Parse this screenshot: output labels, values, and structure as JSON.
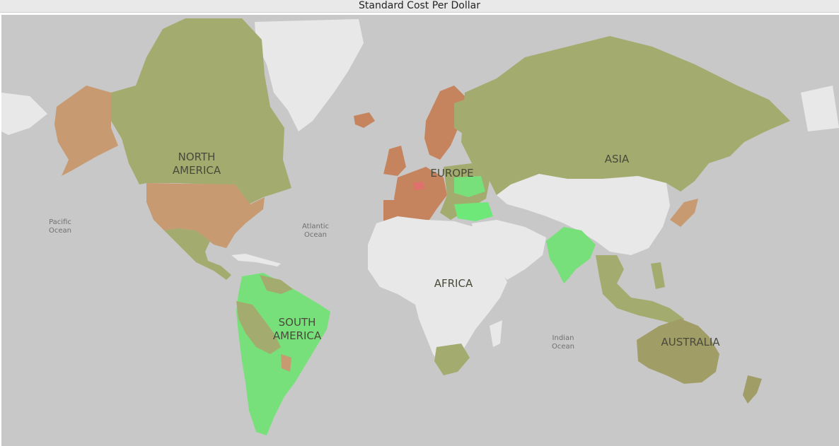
{
  "header": {
    "title": "Standard Cost Per Dollar"
  },
  "map": {
    "continent_labels": {
      "north_america_line1": "NORTH",
      "north_america_line2": "AMERICA",
      "south_america_line1": "SOUTH",
      "south_america_line2": "AMERICA",
      "europe": "EUROPE",
      "asia": "ASIA",
      "africa": "AFRICA",
      "australia": "AUSTRALIA"
    },
    "ocean_labels": {
      "pacific_line1": "Pacific",
      "pacific_line2": "Ocean",
      "atlantic_line1": "Atlantic",
      "atlantic_line2": "Ocean",
      "indian_line1": "Indian",
      "indian_line2": "Ocean"
    },
    "colors": {
      "water": "#c8c8c8",
      "no_data_land": "#e8e8e8",
      "olive": "#a4ab6e",
      "olive_dark": "#a09d66",
      "orange": "#c89a72",
      "orange_dark": "#c6845e",
      "green": "#77e07a",
      "green_bright": "#6ee878",
      "red": "#e0706c"
    }
  }
}
